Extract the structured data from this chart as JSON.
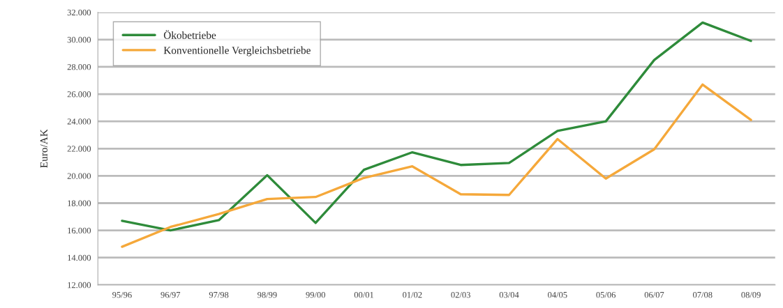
{
  "chart_data": {
    "type": "line",
    "ylabel": "Euro/AK",
    "categories": [
      "95/96",
      "96/97",
      "97/98",
      "98/99",
      "99/00",
      "00/01",
      "01/02",
      "02/03",
      "03/04",
      "04/05",
      "05/06",
      "06/07",
      "07/08",
      "08/09"
    ],
    "series": [
      {
        "name": "Ökobetriebe",
        "color": "#2e8b3a",
        "values": [
          16700,
          16000,
          16750,
          20050,
          16550,
          20450,
          21730,
          20800,
          20950,
          23300,
          24000,
          28500,
          31250,
          29900
        ]
      },
      {
        "name": "Konventionelle Vergleichsbetriebe",
        "color": "#f5a83a",
        "values": [
          14800,
          16250,
          17200,
          18300,
          18450,
          19850,
          20700,
          18650,
          18600,
          22700,
          19800,
          21950,
          26700,
          24100
        ]
      }
    ],
    "ylim": [
      12000,
      32000
    ],
    "yticks": [
      {
        "value": 12000,
        "label": "12.000"
      },
      {
        "value": 14000,
        "label": "14.000"
      },
      {
        "value": 16000,
        "label": "16.000"
      },
      {
        "value": 18000,
        "label": "18.000"
      },
      {
        "value": 20000,
        "label": "20.000"
      },
      {
        "value": 22000,
        "label": "22.000"
      },
      {
        "value": 24000,
        "label": "24.000"
      },
      {
        "value": 26000,
        "label": "26.000"
      },
      {
        "value": 28000,
        "label": "28.000"
      },
      {
        "value": 30000,
        "label": "30.000"
      },
      {
        "value": 32000,
        "label": "32.000"
      }
    ],
    "grid": "y",
    "legend": "top left",
    "marker": "none",
    "line_style": "solid"
  }
}
